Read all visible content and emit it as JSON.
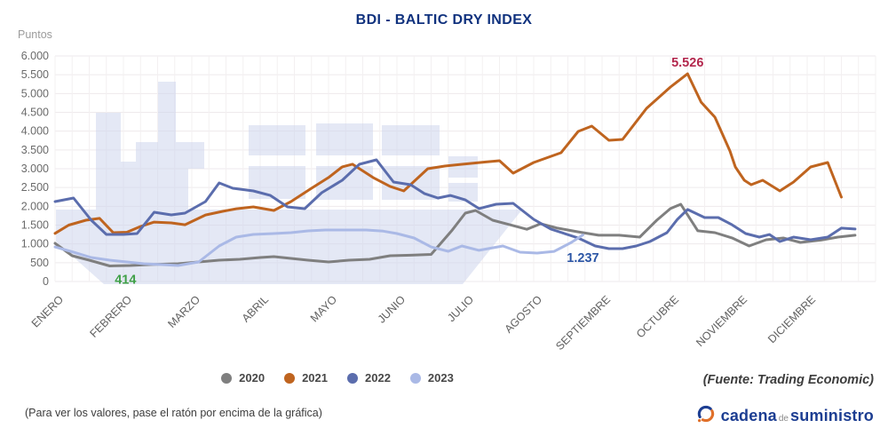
{
  "title": "BDI - BALTIC DRY INDEX",
  "y_axis_unit": "Puntos",
  "footer_note": "(Para ver los valores, pase el ratón por encima de la gráfica)",
  "source": "(Fuente: Trading Economic)",
  "logo": {
    "part1": "cadena",
    "part2": "de",
    "part3": "suministro"
  },
  "colors": {
    "title": "#10327e",
    "grid_h": "#eeeaec",
    "grid_v": "#f3f0f1",
    "watermark": "#c9d2ec",
    "tick_text": "#6a6a6a",
    "month_text": "#606060"
  },
  "chart_data": {
    "type": "line",
    "title": "BDI - BALTIC DRY INDEX",
    "ylabel": "Puntos",
    "ylim": [
      0,
      6000
    ],
    "y_tick_step": 500,
    "y_tick_labels": [
      "0",
      "500",
      "1.000",
      "1.500",
      "2.000",
      "2.500",
      "3.000",
      "3.500",
      "4.000",
      "4.500",
      "5.000",
      "5.500",
      "6.000"
    ],
    "x_tick_labels": [
      "ENERO",
      "FEBRERO",
      "MARZO",
      "ABRIL",
      "MAYO",
      "JUNIO",
      "JULIO",
      "AGOSTO",
      "SEPTIEMBRE",
      "OCTUBRE",
      "NOVIEMBRE",
      "DICIEMBRE"
    ],
    "grid": true,
    "legend_position": "bottom",
    "series": [
      {
        "name": "2020",
        "color": "#7f7f7f",
        "points": [
          [
            0,
            1015
          ],
          [
            0.25,
            685
          ],
          [
            0.5,
            567
          ],
          [
            0.8,
            414
          ],
          [
            1.1,
            425
          ],
          [
            1.4,
            450
          ],
          [
            1.8,
            472
          ],
          [
            2.1,
            520
          ],
          [
            2.4,
            567
          ],
          [
            2.7,
            590
          ],
          [
            3.0,
            638
          ],
          [
            3.2,
            661
          ],
          [
            3.45,
            614
          ],
          [
            3.7,
            567
          ],
          [
            4.0,
            520
          ],
          [
            4.3,
            567
          ],
          [
            4.6,
            590
          ],
          [
            4.9,
            685
          ],
          [
            5.2,
            700
          ],
          [
            5.5,
            720
          ],
          [
            5.8,
            1350
          ],
          [
            6.0,
            1820
          ],
          [
            6.15,
            1890
          ],
          [
            6.4,
            1630
          ],
          [
            6.65,
            1510
          ],
          [
            6.9,
            1390
          ],
          [
            7.1,
            1535
          ],
          [
            7.35,
            1420
          ],
          [
            7.65,
            1320
          ],
          [
            7.95,
            1230
          ],
          [
            8.25,
            1230
          ],
          [
            8.55,
            1180
          ],
          [
            8.8,
            1630
          ],
          [
            9.0,
            1940
          ],
          [
            9.15,
            2055
          ],
          [
            9.4,
            1350
          ],
          [
            9.65,
            1300
          ],
          [
            9.9,
            1160
          ],
          [
            10.15,
            945
          ],
          [
            10.4,
            1110
          ],
          [
            10.65,
            1157
          ],
          [
            10.9,
            1040
          ],
          [
            11.2,
            1100
          ],
          [
            11.45,
            1180
          ],
          [
            11.7,
            1230
          ]
        ]
      },
      {
        "name": "2021",
        "color": "#bf641f",
        "points": [
          [
            0,
            1280
          ],
          [
            0.2,
            1500
          ],
          [
            0.45,
            1630
          ],
          [
            0.65,
            1680
          ],
          [
            0.85,
            1300
          ],
          [
            1.05,
            1310
          ],
          [
            1.25,
            1465
          ],
          [
            1.45,
            1580
          ],
          [
            1.7,
            1560
          ],
          [
            1.9,
            1510
          ],
          [
            2.2,
            1770
          ],
          [
            2.45,
            1865
          ],
          [
            2.65,
            1935
          ],
          [
            2.9,
            1985
          ],
          [
            3.2,
            1890
          ],
          [
            3.45,
            2125
          ],
          [
            3.75,
            2480
          ],
          [
            4.0,
            2765
          ],
          [
            4.2,
            3050
          ],
          [
            4.35,
            3120
          ],
          [
            4.65,
            2765
          ],
          [
            4.9,
            2530
          ],
          [
            5.1,
            2410
          ],
          [
            5.45,
            3000
          ],
          [
            5.7,
            3070
          ],
          [
            5.95,
            3118
          ],
          [
            6.3,
            3180
          ],
          [
            6.5,
            3213
          ],
          [
            6.7,
            2882
          ],
          [
            7.0,
            3165
          ],
          [
            7.4,
            3425
          ],
          [
            7.65,
            3992
          ],
          [
            7.85,
            4134
          ],
          [
            8.1,
            3756
          ],
          [
            8.3,
            3780
          ],
          [
            8.65,
            4606
          ],
          [
            9.0,
            5173
          ],
          [
            9.25,
            5526
          ],
          [
            9.45,
            4770
          ],
          [
            9.65,
            4370
          ],
          [
            9.87,
            3472
          ],
          [
            9.95,
            3047
          ],
          [
            10.08,
            2693
          ],
          [
            10.18,
            2575
          ],
          [
            10.35,
            2693
          ],
          [
            10.6,
            2410
          ],
          [
            10.8,
            2645
          ],
          [
            11.05,
            3047
          ],
          [
            11.3,
            3165
          ],
          [
            11.5,
            2245
          ]
        ]
      },
      {
        "name": "2022",
        "color": "#5b6dad",
        "points": [
          [
            0,
            2126
          ],
          [
            0.27,
            2220
          ],
          [
            0.53,
            1630
          ],
          [
            0.75,
            1252
          ],
          [
            1.0,
            1252
          ],
          [
            1.2,
            1275
          ],
          [
            1.45,
            1842
          ],
          [
            1.7,
            1771
          ],
          [
            1.9,
            1818
          ],
          [
            2.2,
            2126
          ],
          [
            2.4,
            2622
          ],
          [
            2.6,
            2480
          ],
          [
            2.9,
            2410
          ],
          [
            3.15,
            2290
          ],
          [
            3.4,
            1984
          ],
          [
            3.65,
            1937
          ],
          [
            3.9,
            2362
          ],
          [
            4.2,
            2693
          ],
          [
            4.45,
            3118
          ],
          [
            4.7,
            3236
          ],
          [
            4.95,
            2645
          ],
          [
            5.2,
            2575
          ],
          [
            5.4,
            2340
          ],
          [
            5.6,
            2220
          ],
          [
            5.78,
            2290
          ],
          [
            6.0,
            2170
          ],
          [
            6.2,
            1940
          ],
          [
            6.45,
            2055
          ],
          [
            6.7,
            2078
          ],
          [
            7.0,
            1653
          ],
          [
            7.25,
            1393
          ],
          [
            7.65,
            1157
          ],
          [
            7.9,
            945
          ],
          [
            8.1,
            874
          ],
          [
            8.3,
            874
          ],
          [
            8.5,
            945
          ],
          [
            8.7,
            1063
          ],
          [
            8.95,
            1300
          ],
          [
            9.1,
            1650
          ],
          [
            9.25,
            1915
          ],
          [
            9.5,
            1700
          ],
          [
            9.7,
            1700
          ],
          [
            9.9,
            1510
          ],
          [
            10.1,
            1275
          ],
          [
            10.3,
            1180
          ],
          [
            10.45,
            1250
          ],
          [
            10.6,
            1063
          ],
          [
            10.8,
            1180
          ],
          [
            11.05,
            1110
          ],
          [
            11.3,
            1180
          ],
          [
            11.5,
            1420
          ],
          [
            11.7,
            1395
          ]
        ]
      },
      {
        "name": "2023",
        "color": "#aab9e6",
        "points": [
          [
            0,
            920
          ],
          [
            0.27,
            780
          ],
          [
            0.53,
            638
          ],
          [
            0.8,
            567
          ],
          [
            1.05,
            520
          ],
          [
            1.3,
            472
          ],
          [
            1.57,
            448
          ],
          [
            1.8,
            425
          ],
          [
            2.1,
            520
          ],
          [
            2.4,
            945
          ],
          [
            2.65,
            1180
          ],
          [
            2.9,
            1252
          ],
          [
            3.2,
            1276
          ],
          [
            3.45,
            1300
          ],
          [
            3.7,
            1346
          ],
          [
            3.95,
            1370
          ],
          [
            4.25,
            1370
          ],
          [
            4.55,
            1370
          ],
          [
            4.8,
            1340
          ],
          [
            5.0,
            1276
          ],
          [
            5.25,
            1157
          ],
          [
            5.5,
            920
          ],
          [
            5.75,
            803
          ],
          [
            5.95,
            945
          ],
          [
            6.2,
            830
          ],
          [
            6.55,
            945
          ],
          [
            6.8,
            780
          ],
          [
            7.05,
            756
          ],
          [
            7.3,
            800
          ],
          [
            7.55,
            1040
          ],
          [
            7.72,
            1237
          ]
        ]
      }
    ],
    "annotations": [
      {
        "text": "5.526",
        "color": "#b3274d",
        "month": 9.25,
        "value": 5810
      },
      {
        "text": "414",
        "color": "#3fa047",
        "month": 1.03,
        "value": 30
      },
      {
        "text": "1.237",
        "color": "#2b55a5",
        "month": 7.72,
        "value": 610
      }
    ]
  }
}
